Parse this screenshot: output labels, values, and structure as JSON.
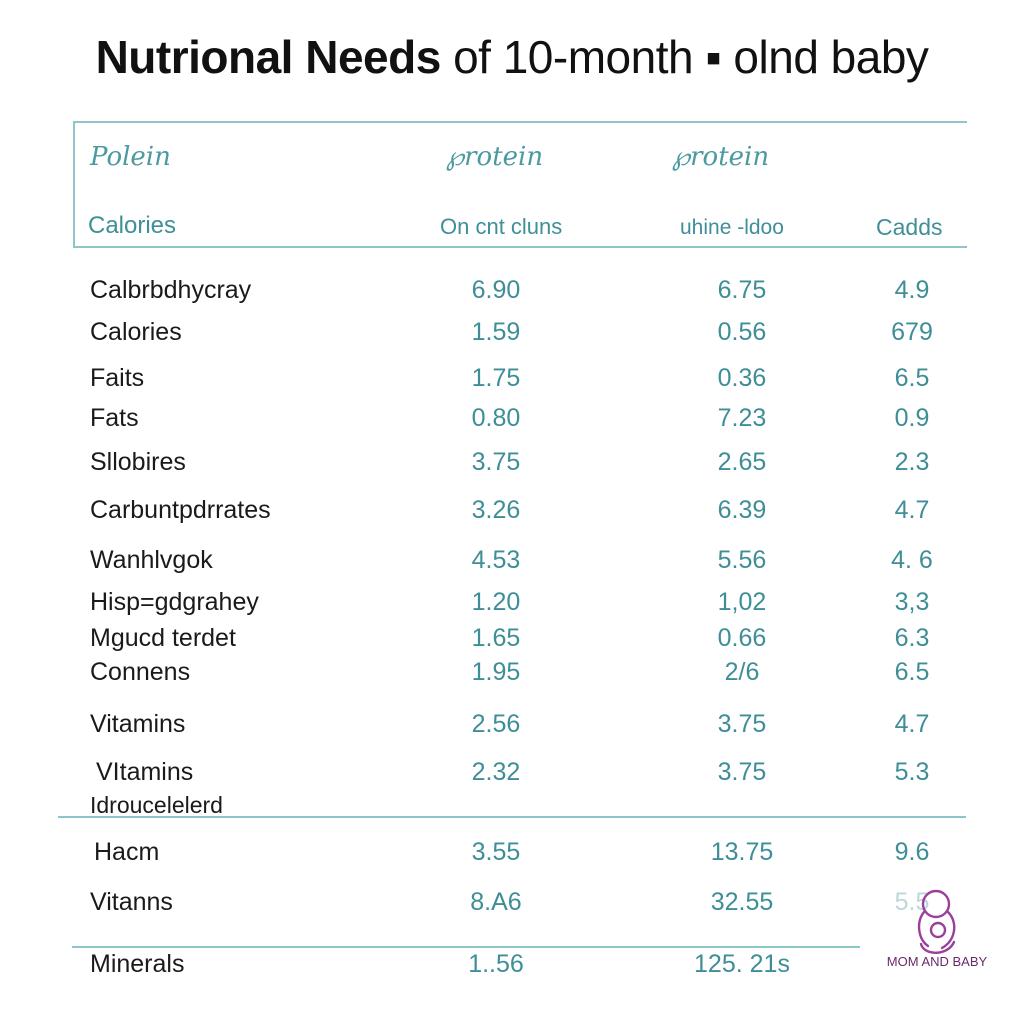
{
  "title": {
    "part1": "Nutrional Needs",
    "part2": " of 10-month",
    "sep": "▪",
    "part3": " olnd baby"
  },
  "header": {
    "row1": [
      "Polein",
      "℘rotein",
      "℘rotein"
    ],
    "row2": [
      "Calories",
      "On cnt cluns",
      "uhine -ldoo",
      "Cadds"
    ]
  },
  "rows": [
    {
      "label": "Calbrbdhycray",
      "v": [
        "6.90",
        "6.75",
        "4.9"
      ]
    },
    {
      "label": "Calories",
      "v": [
        "1.59",
        "0.56",
        "679"
      ]
    },
    {
      "label": "Faits",
      "v": [
        "1.75",
        "0.36",
        "6.5"
      ]
    },
    {
      "label": "Fats",
      "v": [
        "0.80",
        "7.23",
        "0.9"
      ]
    },
    {
      "label": "Sllobires",
      "v": [
        "3.75",
        "2.65",
        "2.3"
      ]
    },
    {
      "label": "Carbuntpdrrates",
      "v": [
        "3.26",
        "6.39",
        "4.7"
      ]
    },
    {
      "label": "Wanhlvgok",
      "v": [
        "4.53",
        "5.56",
        "4. 6"
      ]
    },
    {
      "label": "Hisp=gdgrahey",
      "v": [
        "1.20",
        "1,02",
        "3,3"
      ]
    },
    {
      "label": "Mgucd terdet",
      "v": [
        "1.65",
        "0.66",
        "6.3"
      ]
    },
    {
      "label": "Connens",
      "v": [
        "1.95",
        "2/6",
        "6.5"
      ]
    },
    {
      "label": "Vitamins",
      "v": [
        "2.56",
        "3.75",
        "4.7"
      ]
    },
    {
      "label": "VItamins",
      "v": [
        "2.32",
        "3.75",
        "5.3"
      ]
    },
    {
      "label": "Idroucelelerd",
      "v": [
        "",
        "",
        ""
      ]
    },
    {
      "label": "Hacm",
      "v": [
        "3.55",
        "13.75",
        "9.6"
      ]
    },
    {
      "label": "Vitanns",
      "v": [
        "8.A6",
        "32.55",
        "5.5"
      ]
    },
    {
      "label": "Minerals",
      "v": [
        "1..56",
        "125. 21s",
        ""
      ]
    }
  ],
  "logo": {
    "text": "MOM AND BABY",
    "icon": "mother-baby-icon",
    "color": "#8a3a8a"
  },
  "colors": {
    "accent": "#8cc6c8",
    "numbers": "#3e8e97"
  }
}
